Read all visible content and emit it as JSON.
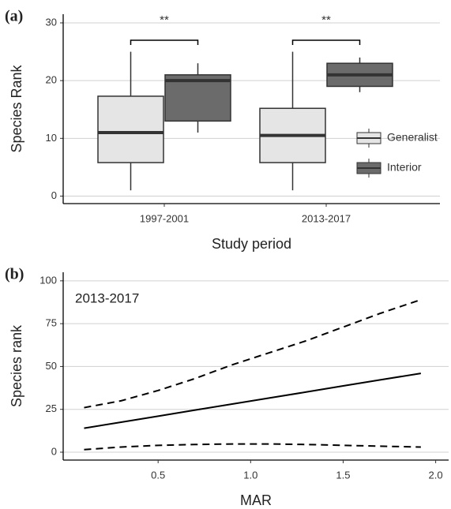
{
  "chart_data": [
    {
      "type": "box",
      "panel_label": "(a)",
      "y_label": "Species Rank",
      "x_label": "Study period",
      "categories": [
        "1997-2001",
        "2013-2017"
      ],
      "series": [
        {
          "name": "Generalist",
          "color": "#e5e5e5",
          "boxes": [
            {
              "min": 1,
              "q1": 5.8,
              "median": 11,
              "q3": 17.3,
              "max": 25
            },
            {
              "min": 1,
              "q1": 5.8,
              "median": 10.5,
              "q3": 15.2,
              "max": 25
            }
          ]
        },
        {
          "name": "Interior",
          "color": "#6b6b6b",
          "boxes": [
            {
              "min": 11,
              "q1": 13,
              "median": 20,
              "q3": 21,
              "max": 23
            },
            {
              "min": 18,
              "q1": 19,
              "median": 21,
              "q3": 23,
              "max": 24
            }
          ]
        }
      ],
      "annotations": [
        "**",
        "**"
      ],
      "ylim": [
        -1.3,
        31.5
      ],
      "yticks": [
        0,
        10,
        20,
        30
      ],
      "grid": true
    },
    {
      "type": "line",
      "panel_label": "(b)",
      "y_label": "Species rank",
      "x_label": "MAR",
      "annotation": "2013-2017",
      "x": [
        0.1,
        0.3,
        0.5,
        0.7,
        0.9,
        1.1,
        1.3,
        1.5,
        1.7,
        1.92
      ],
      "series": [
        {
          "color": "#000000",
          "dash": "dashed",
          "values": [
            26,
            30,
            36,
            43,
            51,
            58,
            65,
            73,
            81,
            89
          ]
        },
        {
          "color": "#000000",
          "dash": "solid",
          "values": [
            14,
            17.5,
            21,
            24.6,
            28.1,
            31.6,
            35.1,
            38.7,
            42.2,
            46
          ]
        },
        {
          "color": "#000000",
          "dash": "dashed",
          "values": [
            1.5,
            3,
            4,
            4.5,
            4.8,
            4.8,
            4.5,
            4,
            3.5,
            3
          ]
        }
      ],
      "xlim": [
        -0.013,
        2.07
      ],
      "xticks": [
        {
          "value": 0.5,
          "label": "0.5"
        },
        {
          "value": 1.0,
          "label": "1.0"
        },
        {
          "value": 1.5,
          "label": "1.5"
        },
        {
          "value": 2.0,
          "label": "2.0"
        }
      ],
      "ylim": [
        -4.6,
        105
      ],
      "yticks": [
        0,
        25,
        50,
        75,
        100
      ],
      "grid": true
    }
  ]
}
